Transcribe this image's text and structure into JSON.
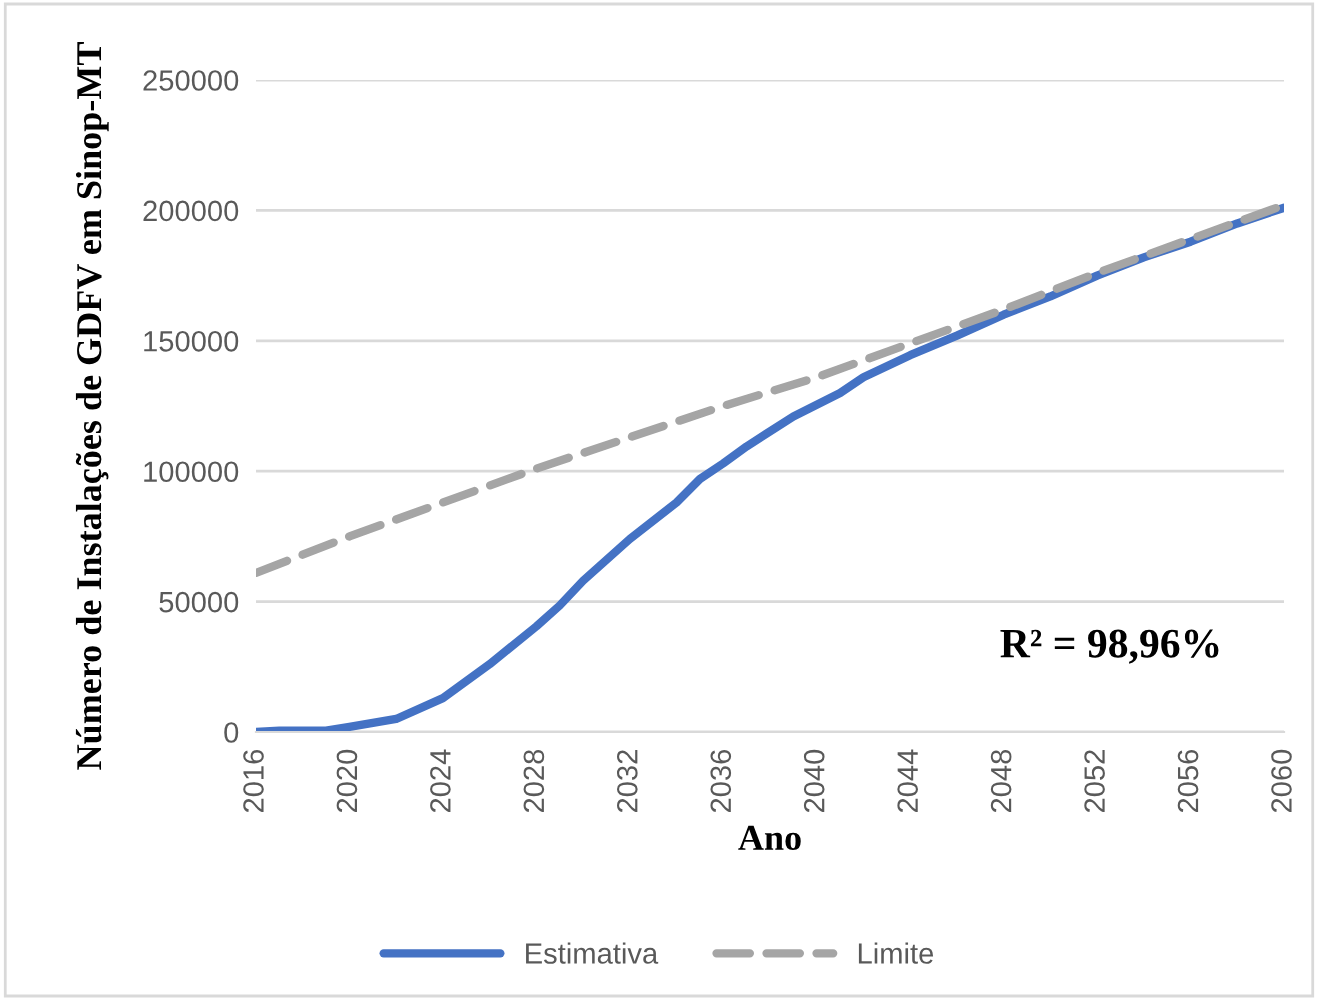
{
  "chart_data": {
    "type": "line",
    "xlabel": "Ano",
    "ylabel": "Número de Instalações de GDFV em Sinop-MT",
    "annotations": [
      "R² = 98,96%"
    ],
    "series": [
      {
        "name": "Estimativa",
        "color": "#4472c4",
        "line_style": "solid",
        "x": [
          2016,
          2017,
          2019,
          2020,
          2022,
          2024,
          2026,
          2028,
          2029,
          2030,
          2032,
          2034,
          2035,
          2036,
          2037,
          2039,
          2041,
          2042,
          2044,
          2046,
          2048,
          2050,
          2052,
          2054,
          2056,
          2058,
          2060
        ],
        "values": [
          0,
          500,
          500,
          2000,
          5000,
          13000,
          26000,
          40500,
          48500,
          58000,
          74000,
          88000,
          97000,
          103000,
          109500,
          121000,
          130000,
          136000,
          144500,
          152000,
          160000,
          167000,
          175000,
          182000,
          188000,
          195000,
          201000
        ]
      },
      {
        "name": "Limite",
        "color": "#a5a5a5",
        "line_style": "dashed",
        "x": [
          2016,
          2020,
          2024,
          2028,
          2032,
          2036,
          2040,
          2044,
          2048,
          2052,
          2056,
          2060
        ],
        "values": [
          61000,
          75000,
          88000,
          101000,
          113000,
          125000,
          136000,
          149000,
          162000,
          176000,
          189000,
          202000
        ]
      }
    ],
    "xlim": [
      2016,
      2060
    ],
    "xticks": [
      2016,
      2020,
      2024,
      2028,
      2032,
      2036,
      2040,
      2044,
      2048,
      2052,
      2056,
      2060
    ],
    "ylim": [
      0,
      250000
    ],
    "yticks": [
      0,
      50000,
      100000,
      150000,
      200000,
      250000
    ],
    "grid": "y",
    "legend": "bottom",
    "marker": "none"
  }
}
